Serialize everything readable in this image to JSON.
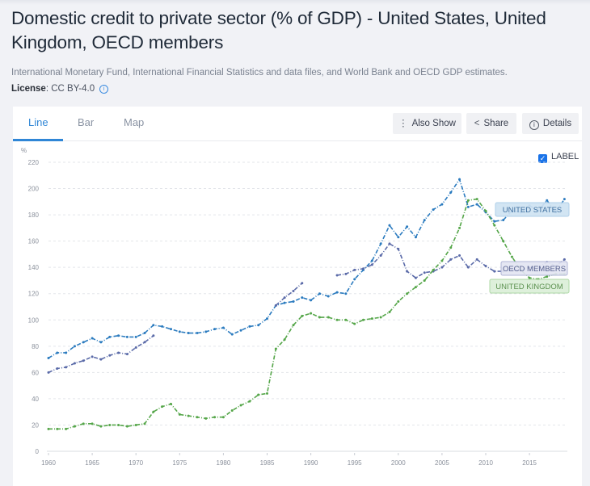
{
  "page": {
    "title": "Domestic credit to private sector (% of GDP) - United States, United Kingdom, OECD members",
    "source": "International Monetary Fund, International Financial Statistics and data files, and World Bank and OECD GDP estimates.",
    "license_label": "License",
    "license_value": ": CC BY-4.0",
    "license_icon": "info-icon"
  },
  "tabs": [
    {
      "label": "Line",
      "active": true
    },
    {
      "label": "Bar",
      "active": false
    },
    {
      "label": "Map",
      "active": false
    }
  ],
  "toolbar": {
    "also_show": {
      "label": "Also Show",
      "icon": "more-vertical-icon"
    },
    "share": {
      "label": "Share",
      "icon": "share-icon"
    },
    "details": {
      "label": "Details",
      "icon": "info-icon"
    }
  },
  "label_toggle": {
    "label": "LABEL",
    "checked": true
  },
  "colors": {
    "us": "#2b7bbf",
    "oecd": "#5a6aa8",
    "uk": "#55a649",
    "us_label_bg": "#cfe3f3",
    "oecd_label_bg": "#e3e5f2",
    "uk_label_bg": "#dcefd8"
  },
  "chart_data": {
    "type": "line",
    "title": "Domestic credit to private sector (% of GDP)",
    "xlabel": "",
    "ylabel": "%",
    "ylim": [
      0,
      220
    ],
    "xlim": [
      1960,
      2019
    ],
    "yticks": [
      0,
      20,
      40,
      60,
      80,
      100,
      120,
      140,
      160,
      180,
      200,
      220
    ],
    "xticks": [
      1960,
      1965,
      1970,
      1975,
      1980,
      1985,
      1990,
      1995,
      2000,
      2005,
      2010,
      2015
    ],
    "grid": true,
    "legend": "inline-labels-right",
    "series": [
      {
        "name": "UNITED STATES",
        "key": "us",
        "x": [
          1960,
          1961,
          1962,
          1963,
          1964,
          1965,
          1966,
          1967,
          1968,
          1969,
          1970,
          1971,
          1972,
          1973,
          1974,
          1975,
          1976,
          1977,
          1978,
          1979,
          1980,
          1981,
          1982,
          1983,
          1984,
          1985,
          1986,
          1987,
          1988,
          1989,
          1990,
          1991,
          1992,
          1993,
          1994,
          1995,
          1996,
          1997,
          1998,
          1999,
          2000,
          2001,
          2002,
          2003,
          2004,
          2005,
          2006,
          2007,
          2008,
          2009,
          2010,
          2011,
          2012,
          2013,
          2014,
          2015,
          2016,
          2017,
          2018,
          2019
        ],
        "values": [
          71,
          75,
          75,
          80,
          83,
          86,
          83,
          87,
          88,
          87,
          87,
          90,
          96,
          95,
          93,
          91,
          90,
          90,
          91,
          93,
          94,
          89,
          92,
          95,
          96,
          101,
          111,
          113,
          114,
          117,
          115,
          120,
          118,
          121,
          120,
          131,
          138,
          145,
          158,
          172,
          163,
          171,
          163,
          176,
          184,
          188,
          197,
          207,
          186,
          188,
          182,
          175,
          176,
          183,
          182,
          187,
          183,
          191,
          182,
          192
        ]
      },
      {
        "name": "OECD MEMBERS",
        "key": "oecd",
        "x": [
          1960,
          1961,
          1962,
          1963,
          1964,
          1965,
          1966,
          1967,
          1968,
          1969,
          1970,
          1971,
          1972,
          1973,
          1974,
          1975,
          1976,
          1977,
          1978,
          1979,
          1980,
          1981,
          1982,
          1983,
          1984,
          1985,
          1986,
          1987,
          1988,
          1989,
          1990,
          1991,
          1992,
          1993,
          1994,
          1995,
          1996,
          1997,
          1998,
          1999,
          2000,
          2001,
          2002,
          2003,
          2004,
          2005,
          2006,
          2007,
          2008,
          2009,
          2010,
          2011,
          2012,
          2013,
          2014,
          2015,
          2016,
          2017,
          2018,
          2019
        ],
        "values": [
          60,
          63,
          64,
          67,
          69,
          72,
          70,
          73,
          75,
          74,
          79,
          83,
          88,
          null,
          null,
          null,
          null,
          null,
          null,
          null,
          null,
          null,
          null,
          null,
          null,
          null,
          111,
          117,
          122,
          128,
          null,
          null,
          null,
          134,
          135,
          138,
          139,
          142,
          149,
          158,
          154,
          137,
          132,
          136,
          137,
          140,
          146,
          149,
          140,
          146,
          141,
          137,
          137,
          138,
          138,
          140,
          140,
          144,
          141,
          146
        ]
      },
      {
        "name": "UNITED KINGDOM",
        "key": "uk",
        "x": [
          1960,
          1961,
          1962,
          1963,
          1964,
          1965,
          1966,
          1967,
          1968,
          1969,
          1970,
          1971,
          1972,
          1973,
          1974,
          1975,
          1976,
          1977,
          1978,
          1979,
          1980,
          1981,
          1982,
          1983,
          1984,
          1985,
          1986,
          1987,
          1988,
          1989,
          1990,
          1991,
          1992,
          1993,
          1994,
          1995,
          1996,
          1997,
          1998,
          1999,
          2000,
          2001,
          2002,
          2003,
          2004,
          2005,
          2006,
          2007,
          2008,
          2009,
          2010,
          2011,
          2012,
          2013,
          2014,
          2015,
          2016,
          2017,
          2018,
          2019
        ],
        "values": [
          17,
          17,
          17,
          19,
          21,
          21,
          19,
          20,
          20,
          19,
          20,
          21,
          30,
          34,
          36,
          28,
          27,
          26,
          25,
          26,
          26,
          31,
          35,
          38,
          43,
          44,
          78,
          85,
          96,
          103,
          105,
          102,
          102,
          100,
          100,
          97,
          100,
          101,
          102,
          106,
          114,
          120,
          125,
          130,
          138,
          145,
          155,
          170,
          191,
          192,
          183,
          172,
          160,
          148,
          138,
          132,
          131,
          133,
          135,
          135
        ]
      }
    ]
  }
}
